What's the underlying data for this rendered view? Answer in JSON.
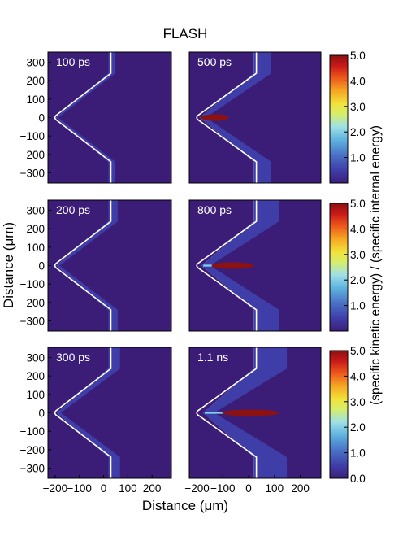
{
  "chart_data": {
    "type": "heatmap",
    "title": "FLASH",
    "xlabel": "Distance (μm)",
    "ylabel": "Distance (μm)",
    "colorbar_label": "(specific kinetic energy) / (specific internal energy)",
    "x_ticks": [
      "−200",
      "−100",
      "0",
      "100",
      "200"
    ],
    "x_tick_values": [
      -200,
      -100,
      0,
      100,
      200
    ],
    "y_ticks": [
      "300",
      "200",
      "100",
      "0",
      "−100",
      "−200",
      "−300"
    ],
    "y_tick_values": [
      300,
      200,
      100,
      0,
      -100,
      -200,
      -300
    ],
    "xlim": [
      -230,
      280
    ],
    "ylim": [
      -355,
      355
    ],
    "colorbar_ticks": [
      "5.0",
      "4.0",
      "3.0",
      "2.0",
      "1.0"
    ],
    "colorbar_ticks_last": [
      "5.0",
      "4.0",
      "3.0",
      "2.0",
      "1.0",
      "0.0"
    ],
    "colorbar_tick_values": [
      5,
      4,
      3,
      2,
      1
    ],
    "colorbar_range": [
      0,
      5
    ],
    "colormap": [
      "#3c1f7a",
      "#3f3da8",
      "#4a72c6",
      "#5fb4e0",
      "#9fe0e6",
      "#d6ee6a",
      "#f2e23a",
      "#f6a823",
      "#ee5a1c",
      "#c81818",
      "#8c1111"
    ],
    "background_color": "#3b1d78",
    "panels": [
      {
        "label": "100 ps",
        "time_ps": 100
      },
      {
        "label": "500 ps",
        "time_ps": 500
      },
      {
        "label": "200 ps",
        "time_ps": 200
      },
      {
        "label": "800 ps",
        "time_ps": 800
      },
      {
        "label": "300 ps",
        "time_ps": 300
      },
      {
        "label": "1.1 ns",
        "time_ps": 1100
      }
    ]
  }
}
